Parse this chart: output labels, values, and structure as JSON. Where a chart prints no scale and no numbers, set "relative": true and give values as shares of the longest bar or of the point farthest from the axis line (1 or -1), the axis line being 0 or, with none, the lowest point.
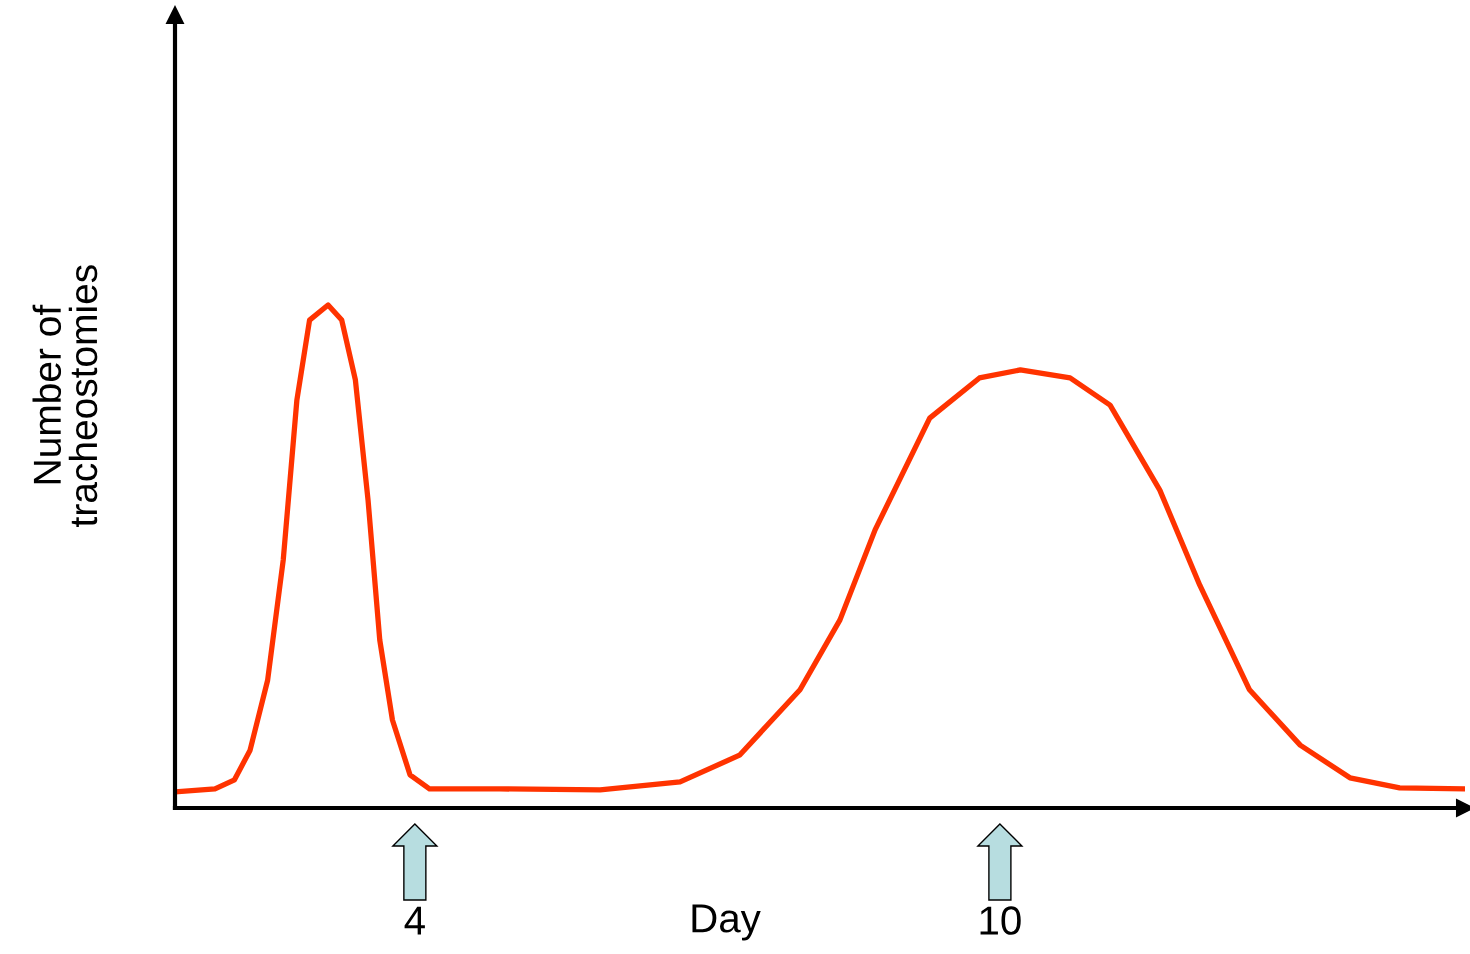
{
  "chart_data": {
    "type": "line",
    "relative": true,
    "xlabel": "Day",
    "ylabel": "Number of\ntracheostomies",
    "x": [
      1.54,
      1.95,
      2.15,
      2.31,
      2.49,
      2.65,
      2.79,
      2.92,
      3.11,
      3.25,
      3.39,
      3.52,
      3.64,
      3.77,
      3.95,
      4.15,
      4.87,
      5.9,
      6.72,
      7.33,
      7.95,
      8.36,
      8.72,
      9.28,
      9.79,
      10.21,
      10.72,
      11.13,
      11.64,
      12.05,
      12.56,
      13.08,
      13.59,
      14.1,
      14.77
    ],
    "series": [
      {
        "color": "#ff3300",
        "values": [
          0.032,
          0.038,
          0.056,
          0.115,
          0.254,
          0.493,
          0.811,
          0.97,
          1.0,
          0.97,
          0.851,
          0.612,
          0.334,
          0.175,
          0.066,
          0.038,
          0.038,
          0.036,
          0.052,
          0.105,
          0.235,
          0.374,
          0.553,
          0.775,
          0.855,
          0.871,
          0.855,
          0.801,
          0.632,
          0.443,
          0.235,
          0.125,
          0.06,
          0.04,
          0.038
        ]
      }
    ],
    "xlim": [
      1.54,
      14.77
    ],
    "xticks": [
      4,
      10
    ],
    "tick_labels": "x",
    "grid": false,
    "legend": false,
    "marker": "none",
    "line_style": "solid"
  }
}
